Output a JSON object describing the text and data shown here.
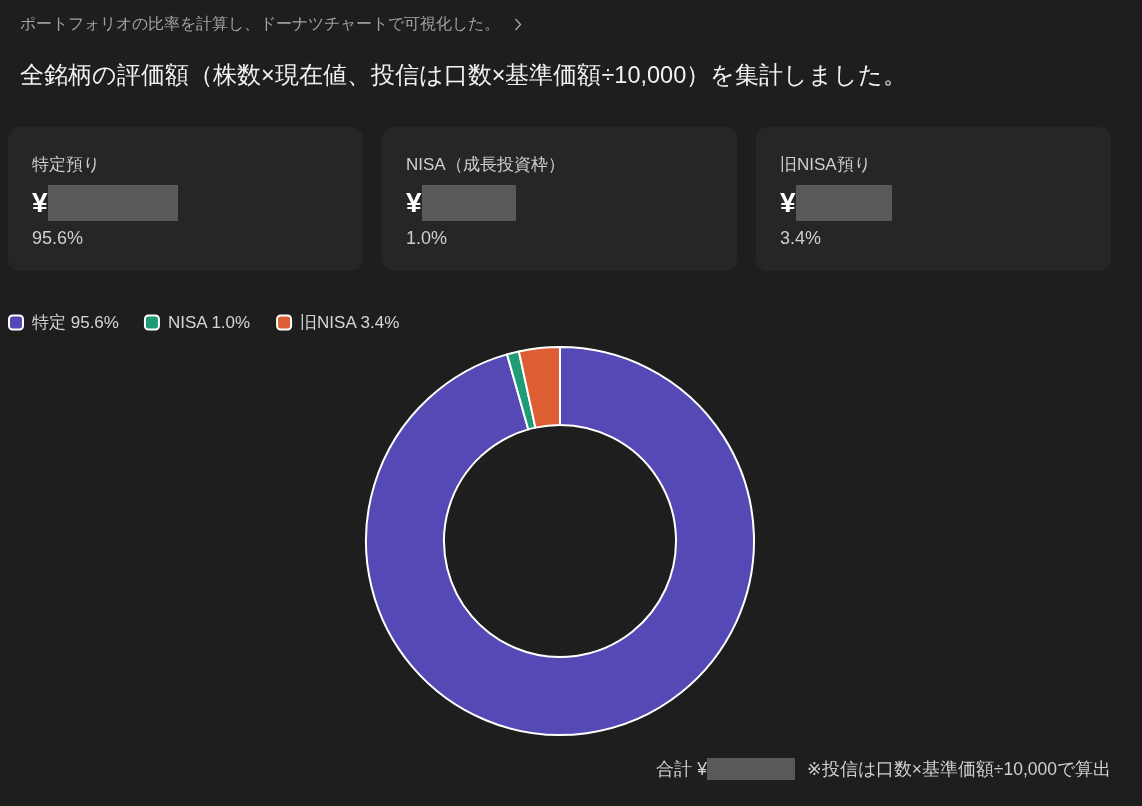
{
  "chart_data": [
    {
      "type": "other",
      "title": "ポートフォリオの比率を計算し、ドーナツチャートで可視化した。",
      "subtitle": "全銘柄の評価額（株数×現在値、投信は口数×基準価額÷10,000）を集計しました。"
    },
    {
      "type": "other",
      "title": "特定預り",
      "annotations": [
        "¥",
        "95.6%"
      ]
    },
    {
      "type": "other",
      "title": "NISA（成長投資枠）",
      "annotations": [
        "¥",
        "1.0%"
      ]
    },
    {
      "type": "other",
      "title": "旧NISA預り",
      "annotations": [
        "¥",
        "3.4%"
      ]
    },
    {
      "type": "donut",
      "categories": [
        "特定 95.6%",
        "NISA 1.0%",
        "旧NISA 3.4%"
      ],
      "values": [
        95.6,
        1.0,
        3.4
      ],
      "colors": [
        "#5549b5",
        "#1f9c76",
        "#dd5d35"
      ],
      "legend": "top left",
      "annotations": [
        "合計 ¥",
        "※投信は口数×基準価額÷10,000で算出"
      ]
    }
  ]
}
